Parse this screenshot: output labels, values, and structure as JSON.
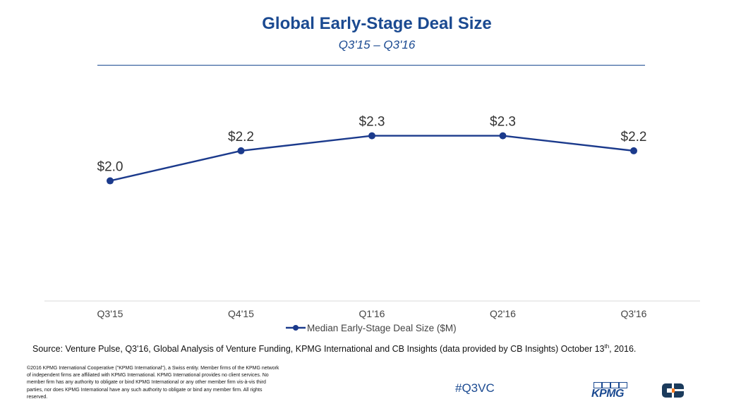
{
  "header": {
    "title": "Global Early-Stage Deal Size",
    "subtitle": "Q3'15 – Q3'16"
  },
  "chart_data": {
    "type": "line",
    "title": "Global Early-Stage Deal Size",
    "subtitle": "Q3'15 – Q3'16",
    "categories": [
      "Q3'15",
      "Q4'15",
      "Q1'16",
      "Q2'16",
      "Q3'16"
    ],
    "series": [
      {
        "name": "Median Early-Stage Deal Size ($M)",
        "values": [
          2.0,
          2.2,
          2.3,
          2.3,
          2.2
        ],
        "labels": [
          "$2.0",
          "$2.2",
          "$2.3",
          "$2.3",
          "$2.2"
        ],
        "color": "#1b3a8c"
      }
    ],
    "xlabel": "",
    "ylabel": "",
    "ylim": [
      1.2,
      2.5
    ],
    "grid": false,
    "legend": "bottom-center"
  },
  "footer": {
    "source_main": "Source: Venture Pulse, Q3'16, Global Analysis of Venture Funding, KPMG International and CB Insights (data provided by CB Insights) October 13",
    "source_sup": "th",
    "source_end": ", 2016.",
    "disclaimer": "©2016 KPMG International Cooperative (\"KPMG International\"), a Swiss entity. Member firms of the KPMG network of independent firms are affiliated with KPMG International. KPMG International provides no client services. No member firm has any authority to obligate or bind KPMG International or any other member firm vis-à-vis third parties, nor does KPMG International have any such authority to obligate or bind any member firm. All rights reserved.",
    "hashtag": "#Q3VC",
    "kpmg_logo_text": "KPMG"
  },
  "colors": {
    "brand_blue": "#1b4a91",
    "line": "#1b3a8c",
    "cb_logo": "#1b3b5c",
    "cb_accent": "#f47a20"
  }
}
